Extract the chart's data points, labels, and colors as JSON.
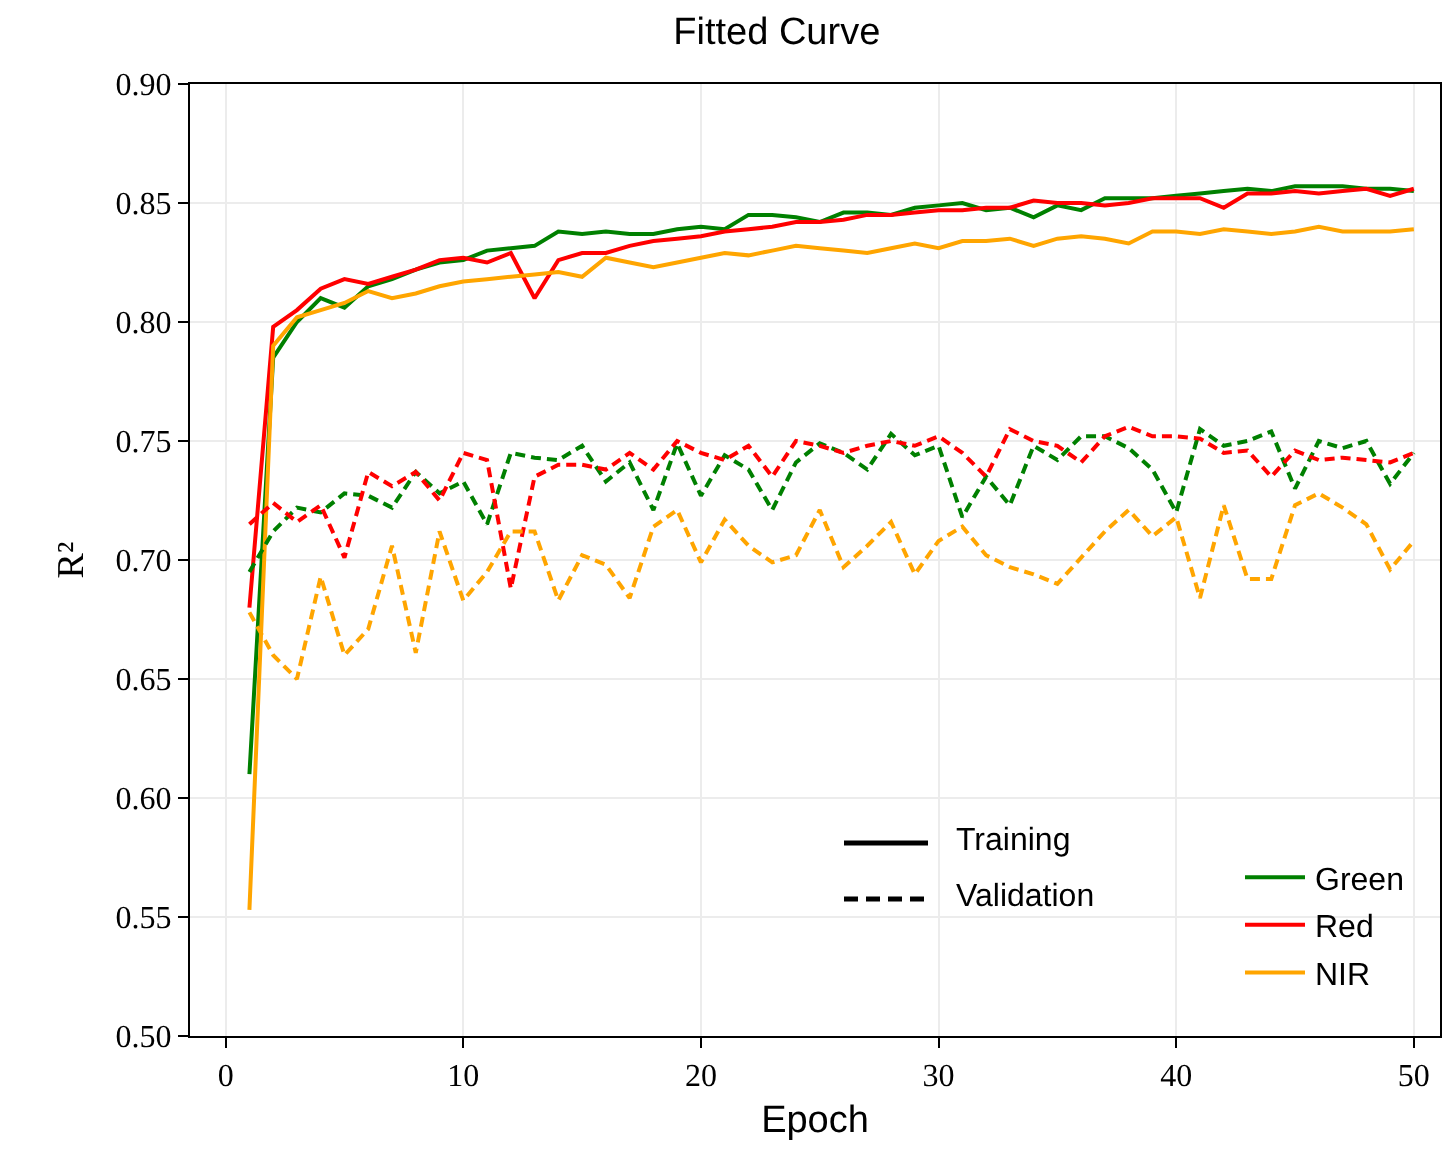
{
  "chart_data": {
    "type": "line",
    "title": "Fitted Curve",
    "xlabel": "Epoch",
    "ylabel": "R²",
    "x": [
      1,
      2,
      3,
      4,
      5,
      6,
      7,
      8,
      9,
      10,
      11,
      12,
      13,
      14,
      15,
      16,
      17,
      18,
      19,
      20,
      21,
      22,
      23,
      24,
      25,
      26,
      27,
      28,
      29,
      30,
      31,
      32,
      33,
      34,
      35,
      36,
      37,
      38,
      39,
      40,
      41,
      42,
      43,
      44,
      45,
      46,
      47,
      48,
      49,
      50
    ],
    "xlim": [
      -1.5,
      51.1
    ],
    "xticks": [
      0,
      10,
      20,
      30,
      40,
      50
    ],
    "ylim": [
      0.5,
      0.9
    ],
    "yticks": [
      {
        "value": 0.5,
        "label": "0.50"
      },
      {
        "value": 0.55,
        "label": "0.55"
      },
      {
        "value": 0.6,
        "label": "0.60"
      },
      {
        "value": 0.65,
        "label": "0.65"
      },
      {
        "value": 0.7,
        "label": "0.70"
      },
      {
        "value": 0.75,
        "label": "0.75"
      },
      {
        "value": 0.8,
        "label": "0.80"
      },
      {
        "value": 0.85,
        "label": "0.85"
      },
      {
        "value": 0.9,
        "label": "0.90"
      }
    ],
    "grid": true,
    "legend": "bottom right",
    "annotations": [
      "Training",
      "Validation"
    ],
    "series": [
      {
        "name": "Green",
        "color": "#008000",
        "line_style": "solid",
        "values": [
          0.61,
          0.785,
          0.8,
          0.81,
          0.806,
          0.815,
          0.818,
          0.822,
          0.825,
          0.826,
          0.83,
          0.831,
          0.832,
          0.838,
          0.837,
          0.838,
          0.837,
          0.837,
          0.839,
          0.84,
          0.839,
          0.845,
          0.845,
          0.844,
          0.842,
          0.846,
          0.846,
          0.845,
          0.848,
          0.849,
          0.85,
          0.847,
          0.848,
          0.844,
          0.849,
          0.847,
          0.852,
          0.852,
          0.852,
          0.853,
          0.854,
          0.855,
          0.856,
          0.855,
          0.857,
          0.857,
          0.857,
          0.856,
          0.856,
          0.855
        ]
      },
      {
        "name": "Red",
        "color": "#ff0000",
        "line_style": "solid",
        "values": [
          0.68,
          0.798,
          0.805,
          0.814,
          0.818,
          0.816,
          0.819,
          0.822,
          0.826,
          0.827,
          0.825,
          0.829,
          0.81,
          0.826,
          0.829,
          0.829,
          0.832,
          0.834,
          0.835,
          0.836,
          0.838,
          0.839,
          0.84,
          0.842,
          0.842,
          0.843,
          0.845,
          0.845,
          0.846,
          0.847,
          0.847,
          0.848,
          0.848,
          0.851,
          0.85,
          0.85,
          0.849,
          0.85,
          0.852,
          0.852,
          0.852,
          0.848,
          0.854,
          0.854,
          0.855,
          0.854,
          0.855,
          0.856,
          0.853,
          0.856
        ]
      },
      {
        "name": "NIR",
        "color": "#ffa500",
        "line_style": "solid",
        "values": [
          0.553,
          0.79,
          0.802,
          0.805,
          0.808,
          0.813,
          0.81,
          0.812,
          0.815,
          0.817,
          0.818,
          0.819,
          0.82,
          0.821,
          0.819,
          0.827,
          0.825,
          0.823,
          0.825,
          0.827,
          0.829,
          0.828,
          0.83,
          0.832,
          0.831,
          0.83,
          0.829,
          0.831,
          0.833,
          0.831,
          0.834,
          0.834,
          0.835,
          0.832,
          0.835,
          0.836,
          0.835,
          0.833,
          0.838,
          0.838,
          0.837,
          0.839,
          0.838,
          0.837,
          0.838,
          0.84,
          0.838,
          0.838,
          0.838,
          0.839
        ]
      },
      {
        "color": "#008000",
        "line_style": "dashed",
        "values": [
          0.695,
          0.712,
          0.722,
          0.72,
          0.728,
          0.727,
          0.722,
          0.737,
          0.728,
          0.733,
          0.715,
          0.745,
          0.743,
          0.742,
          0.748,
          0.733,
          0.741,
          0.721,
          0.749,
          0.727,
          0.744,
          0.738,
          0.721,
          0.741,
          0.749,
          0.745,
          0.738,
          0.753,
          0.744,
          0.748,
          0.718,
          0.735,
          0.723,
          0.748,
          0.742,
          0.752,
          0.752,
          0.747,
          0.738,
          0.72,
          0.755,
          0.748,
          0.75,
          0.754,
          0.73,
          0.75,
          0.747,
          0.75,
          0.732,
          0.745
        ]
      },
      {
        "color": "#ff0000",
        "line_style": "dashed",
        "values": [
          0.715,
          0.724,
          0.716,
          0.723,
          0.701,
          0.737,
          0.731,
          0.737,
          0.725,
          0.745,
          0.742,
          0.688,
          0.735,
          0.74,
          0.74,
          0.738,
          0.745,
          0.738,
          0.75,
          0.745,
          0.742,
          0.748,
          0.735,
          0.75,
          0.748,
          0.745,
          0.748,
          0.75,
          0.748,
          0.752,
          0.745,
          0.735,
          0.755,
          0.75,
          0.748,
          0.741,
          0.752,
          0.756,
          0.752,
          0.752,
          0.751,
          0.745,
          0.746,
          0.735,
          0.746,
          0.742,
          0.743,
          0.742,
          0.741,
          0.745
        ]
      },
      {
        "color": "#ffa500",
        "line_style": "dashed",
        "values": [
          0.678,
          0.66,
          0.65,
          0.693,
          0.66,
          0.671,
          0.706,
          0.661,
          0.712,
          0.683,
          0.695,
          0.712,
          0.712,
          0.683,
          0.702,
          0.698,
          0.684,
          0.714,
          0.721,
          0.699,
          0.717,
          0.706,
          0.699,
          0.702,
          0.721,
          0.697,
          0.706,
          0.716,
          0.694,
          0.708,
          0.714,
          0.702,
          0.697,
          0.694,
          0.69,
          0.701,
          0.712,
          0.721,
          0.71,
          0.718,
          0.684,
          0.723,
          0.692,
          0.692,
          0.723,
          0.728,
          0.722,
          0.715,
          0.696,
          0.708
        ]
      }
    ]
  }
}
